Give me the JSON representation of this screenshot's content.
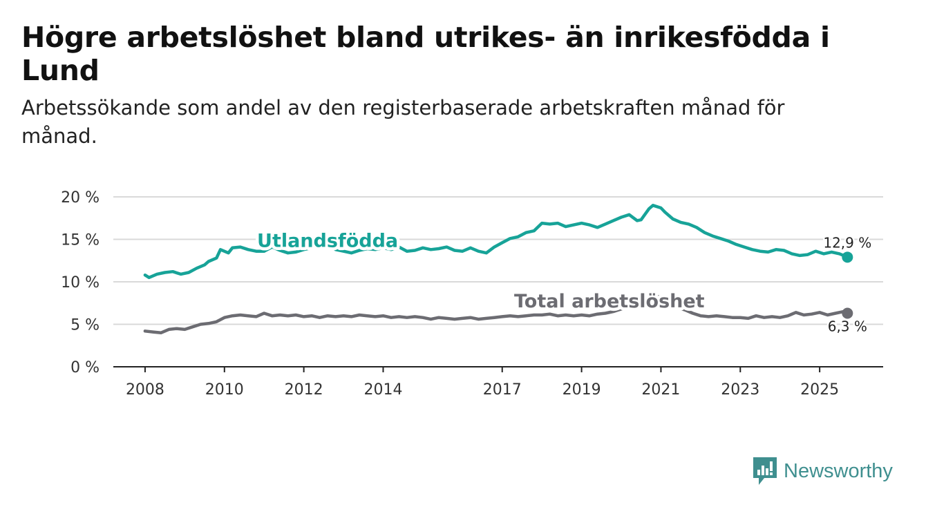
{
  "title": "Högre arbetslöshet bland utrikes- än inrikesfödda i Lund",
  "subtitle": "Arbetssökande som andel av den registerbaserade arbetskraften månad för månad.",
  "brand": {
    "name": "Newsworthy",
    "color": "#3f8f8f",
    "icon": "newsworthy-logo-icon"
  },
  "chart_data": {
    "type": "line",
    "x_unit": "year (decimal)",
    "xlim": [
      2007.2,
      2026.6
    ],
    "ylim": [
      0,
      20
    ],
    "ytick_values": [
      0,
      5,
      10,
      15,
      20
    ],
    "ytick_labels": [
      "0 %",
      "5 %",
      "10 %",
      "15 %",
      "20 %"
    ],
    "xtick_values": [
      2008,
      2010,
      2012,
      2014,
      2017,
      2019,
      2021,
      2023,
      2025
    ],
    "xtick_labels": [
      "2008",
      "2010",
      "2012",
      "2014",
      "2017",
      "2019",
      "2021",
      "2023",
      "2025"
    ],
    "grid": true,
    "series": [
      {
        "name": "Utlandsfödda",
        "color": "#17a398",
        "label_at": [
          2012.6,
          14.1
        ],
        "end_label": "12,9 %",
        "points": [
          [
            2008.0,
            10.8
          ],
          [
            2008.1,
            10.5
          ],
          [
            2008.3,
            10.9
          ],
          [
            2008.5,
            11.1
          ],
          [
            2008.7,
            11.2
          ],
          [
            2008.9,
            10.9
          ],
          [
            2009.1,
            11.1
          ],
          [
            2009.3,
            11.6
          ],
          [
            2009.5,
            12.0
          ],
          [
            2009.6,
            12.4
          ],
          [
            2009.8,
            12.8
          ],
          [
            2009.9,
            13.8
          ],
          [
            2010.1,
            13.4
          ],
          [
            2010.2,
            14.0
          ],
          [
            2010.4,
            14.1
          ],
          [
            2010.6,
            13.8
          ],
          [
            2010.8,
            13.6
          ],
          [
            2011.0,
            13.6
          ],
          [
            2011.2,
            14.1
          ],
          [
            2011.4,
            13.7
          ],
          [
            2011.6,
            13.4
          ],
          [
            2011.8,
            13.5
          ],
          [
            2012.0,
            13.8
          ],
          [
            2012.2,
            14.0
          ],
          [
            2012.4,
            14.2
          ],
          [
            2012.6,
            14.3
          ],
          [
            2012.8,
            13.8
          ],
          [
            2013.0,
            13.6
          ],
          [
            2013.2,
            13.4
          ],
          [
            2013.4,
            13.7
          ],
          [
            2013.6,
            13.9
          ],
          [
            2013.8,
            13.8
          ],
          [
            2014.0,
            14.0
          ],
          [
            2014.2,
            13.8
          ],
          [
            2014.4,
            14.1
          ],
          [
            2014.6,
            13.6
          ],
          [
            2014.8,
            13.7
          ],
          [
            2015.0,
            14.0
          ],
          [
            2015.2,
            13.8
          ],
          [
            2015.4,
            13.9
          ],
          [
            2015.6,
            14.1
          ],
          [
            2015.8,
            13.7
          ],
          [
            2016.0,
            13.6
          ],
          [
            2016.2,
            14.0
          ],
          [
            2016.4,
            13.6
          ],
          [
            2016.6,
            13.4
          ],
          [
            2016.8,
            14.1
          ],
          [
            2017.0,
            14.6
          ],
          [
            2017.2,
            15.1
          ],
          [
            2017.4,
            15.3
          ],
          [
            2017.6,
            15.8
          ],
          [
            2017.8,
            16.0
          ],
          [
            2018.0,
            16.9
          ],
          [
            2018.2,
            16.8
          ],
          [
            2018.4,
            16.9
          ],
          [
            2018.6,
            16.5
          ],
          [
            2018.8,
            16.7
          ],
          [
            2019.0,
            16.9
          ],
          [
            2019.2,
            16.7
          ],
          [
            2019.4,
            16.4
          ],
          [
            2019.6,
            16.8
          ],
          [
            2019.8,
            17.2
          ],
          [
            2020.0,
            17.6
          ],
          [
            2020.2,
            17.9
          ],
          [
            2020.4,
            17.2
          ],
          [
            2020.5,
            17.3
          ],
          [
            2020.7,
            18.6
          ],
          [
            2020.8,
            19.0
          ],
          [
            2021.0,
            18.7
          ],
          [
            2021.1,
            18.2
          ],
          [
            2021.3,
            17.4
          ],
          [
            2021.5,
            17.0
          ],
          [
            2021.7,
            16.8
          ],
          [
            2021.9,
            16.4
          ],
          [
            2022.1,
            15.8
          ],
          [
            2022.3,
            15.4
          ],
          [
            2022.5,
            15.1
          ],
          [
            2022.7,
            14.8
          ],
          [
            2022.9,
            14.4
          ],
          [
            2023.1,
            14.1
          ],
          [
            2023.3,
            13.8
          ],
          [
            2023.5,
            13.6
          ],
          [
            2023.7,
            13.5
          ],
          [
            2023.9,
            13.8
          ],
          [
            2024.1,
            13.7
          ],
          [
            2024.3,
            13.3
          ],
          [
            2024.5,
            13.1
          ],
          [
            2024.7,
            13.2
          ],
          [
            2024.9,
            13.6
          ],
          [
            2025.1,
            13.3
          ],
          [
            2025.3,
            13.5
          ],
          [
            2025.5,
            13.3
          ],
          [
            2025.7,
            12.9
          ]
        ]
      },
      {
        "name": "Total arbetslöshet",
        "color": "#6c6c72",
        "label_at": [
          2019.7,
          7.0
        ],
        "end_label": "6,3 %",
        "points": [
          [
            2008.0,
            4.2
          ],
          [
            2008.2,
            4.1
          ],
          [
            2008.4,
            4.0
          ],
          [
            2008.6,
            4.4
          ],
          [
            2008.8,
            4.5
          ],
          [
            2009.0,
            4.4
          ],
          [
            2009.2,
            4.7
          ],
          [
            2009.4,
            5.0
          ],
          [
            2009.6,
            5.1
          ],
          [
            2009.8,
            5.3
          ],
          [
            2010.0,
            5.8
          ],
          [
            2010.2,
            6.0
          ],
          [
            2010.4,
            6.1
          ],
          [
            2010.6,
            6.0
          ],
          [
            2010.8,
            5.9
          ],
          [
            2011.0,
            6.3
          ],
          [
            2011.2,
            6.0
          ],
          [
            2011.4,
            6.1
          ],
          [
            2011.6,
            6.0
          ],
          [
            2011.8,
            6.1
          ],
          [
            2012.0,
            5.9
          ],
          [
            2012.2,
            6.0
          ],
          [
            2012.4,
            5.8
          ],
          [
            2012.6,
            6.0
          ],
          [
            2012.8,
            5.9
          ],
          [
            2013.0,
            6.0
          ],
          [
            2013.2,
            5.9
          ],
          [
            2013.4,
            6.1
          ],
          [
            2013.6,
            6.0
          ],
          [
            2013.8,
            5.9
          ],
          [
            2014.0,
            6.0
          ],
          [
            2014.2,
            5.8
          ],
          [
            2014.4,
            5.9
          ],
          [
            2014.6,
            5.8
          ],
          [
            2014.8,
            5.9
          ],
          [
            2015.0,
            5.8
          ],
          [
            2015.2,
            5.6
          ],
          [
            2015.4,
            5.8
          ],
          [
            2015.6,
            5.7
          ],
          [
            2015.8,
            5.6
          ],
          [
            2016.0,
            5.7
          ],
          [
            2016.2,
            5.8
          ],
          [
            2016.4,
            5.6
          ],
          [
            2016.6,
            5.7
          ],
          [
            2016.8,
            5.8
          ],
          [
            2017.0,
            5.9
          ],
          [
            2017.2,
            6.0
          ],
          [
            2017.4,
            5.9
          ],
          [
            2017.6,
            6.0
          ],
          [
            2017.8,
            6.1
          ],
          [
            2018.0,
            6.1
          ],
          [
            2018.2,
            6.2
          ],
          [
            2018.4,
            6.0
          ],
          [
            2018.6,
            6.1
          ],
          [
            2018.8,
            6.0
          ],
          [
            2019.0,
            6.1
          ],
          [
            2019.2,
            6.0
          ],
          [
            2019.4,
            6.2
          ],
          [
            2019.6,
            6.3
          ],
          [
            2019.8,
            6.5
          ],
          [
            2020.0,
            6.8
          ],
          [
            2020.2,
            7.2
          ],
          [
            2020.4,
            7.6
          ],
          [
            2020.6,
            8.1
          ],
          [
            2020.8,
            8.4
          ],
          [
            2021.0,
            8.2
          ],
          [
            2021.2,
            7.6
          ],
          [
            2021.4,
            7.0
          ],
          [
            2021.6,
            6.7
          ],
          [
            2021.8,
            6.3
          ],
          [
            2022.0,
            6.0
          ],
          [
            2022.2,
            5.9
          ],
          [
            2022.4,
            6.0
          ],
          [
            2022.6,
            5.9
          ],
          [
            2022.8,
            5.8
          ],
          [
            2023.0,
            5.8
          ],
          [
            2023.2,
            5.7
          ],
          [
            2023.4,
            6.0
          ],
          [
            2023.6,
            5.8
          ],
          [
            2023.8,
            5.9
          ],
          [
            2024.0,
            5.8
          ],
          [
            2024.2,
            6.0
          ],
          [
            2024.4,
            6.4
          ],
          [
            2024.6,
            6.1
          ],
          [
            2024.8,
            6.2
          ],
          [
            2025.0,
            6.4
          ],
          [
            2025.2,
            6.1
          ],
          [
            2025.4,
            6.3
          ],
          [
            2025.6,
            6.5
          ],
          [
            2025.7,
            6.3
          ]
        ]
      }
    ]
  }
}
